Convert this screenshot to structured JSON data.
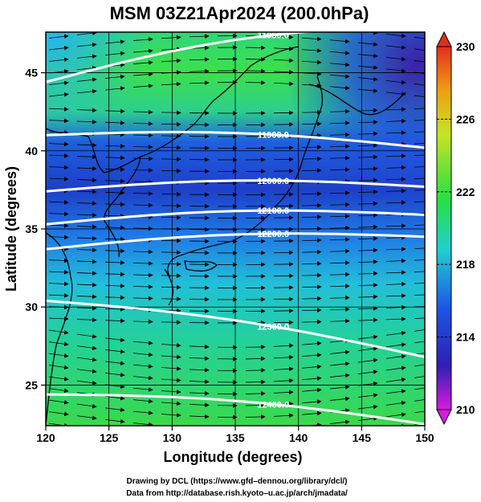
{
  "title": "MSM 03Z21Apr2024 (200.0hPa)",
  "x_axis": {
    "label": "Longitude (degrees)",
    "ticks": [
      "120",
      "125",
      "130",
      "135",
      "140",
      "145",
      "150"
    ],
    "range": [
      120,
      150
    ]
  },
  "y_axis": {
    "label": "Latitude  (degrees)",
    "ticks": [
      "25",
      "30",
      "35",
      "40",
      "45"
    ],
    "range": [
      22.4,
      47.6
    ]
  },
  "colorbar": {
    "ticks": [
      "230",
      "226",
      "222",
      "218",
      "214",
      "210"
    ],
    "range": [
      210,
      230
    ],
    "colors": [
      "#d81be0",
      "#2f1fb4",
      "#1d55e6",
      "#1fd0d0",
      "#27e040",
      "#c7e327",
      "#ee9e10",
      "#e52d1f"
    ]
  },
  "contours": [
    {
      "label": "11950.0",
      "lat_at_120": 44.4,
      "lat_at_150": 48.0
    },
    {
      "label": "11900.0",
      "lat_at_120": 41.0,
      "lat_at_150": 40.2
    },
    {
      "label": "12000.0",
      "lat_at_120": 37.4,
      "lat_at_150": 37.7
    },
    {
      "label": "12100.0",
      "lat_at_120": 35.3,
      "lat_at_150": 35.9
    },
    {
      "label": "12200.0",
      "lat_at_120": 33.7,
      "lat_at_150": 34.5
    },
    {
      "label": "12300.0",
      "lat_at_120": 30.4,
      "lat_at_150": 26.8
    },
    {
      "label": "12400.0",
      "lat_at_120": 24.4,
      "lat_at_150": 22.5
    }
  ],
  "credits": {
    "line1": "Drawing by DCL (https://www.gfd–dennou.org/library/dcl/)",
    "line2": "Data from http://database.rish.kyoto–u.ac.jp/arch/jmadata/"
  }
}
